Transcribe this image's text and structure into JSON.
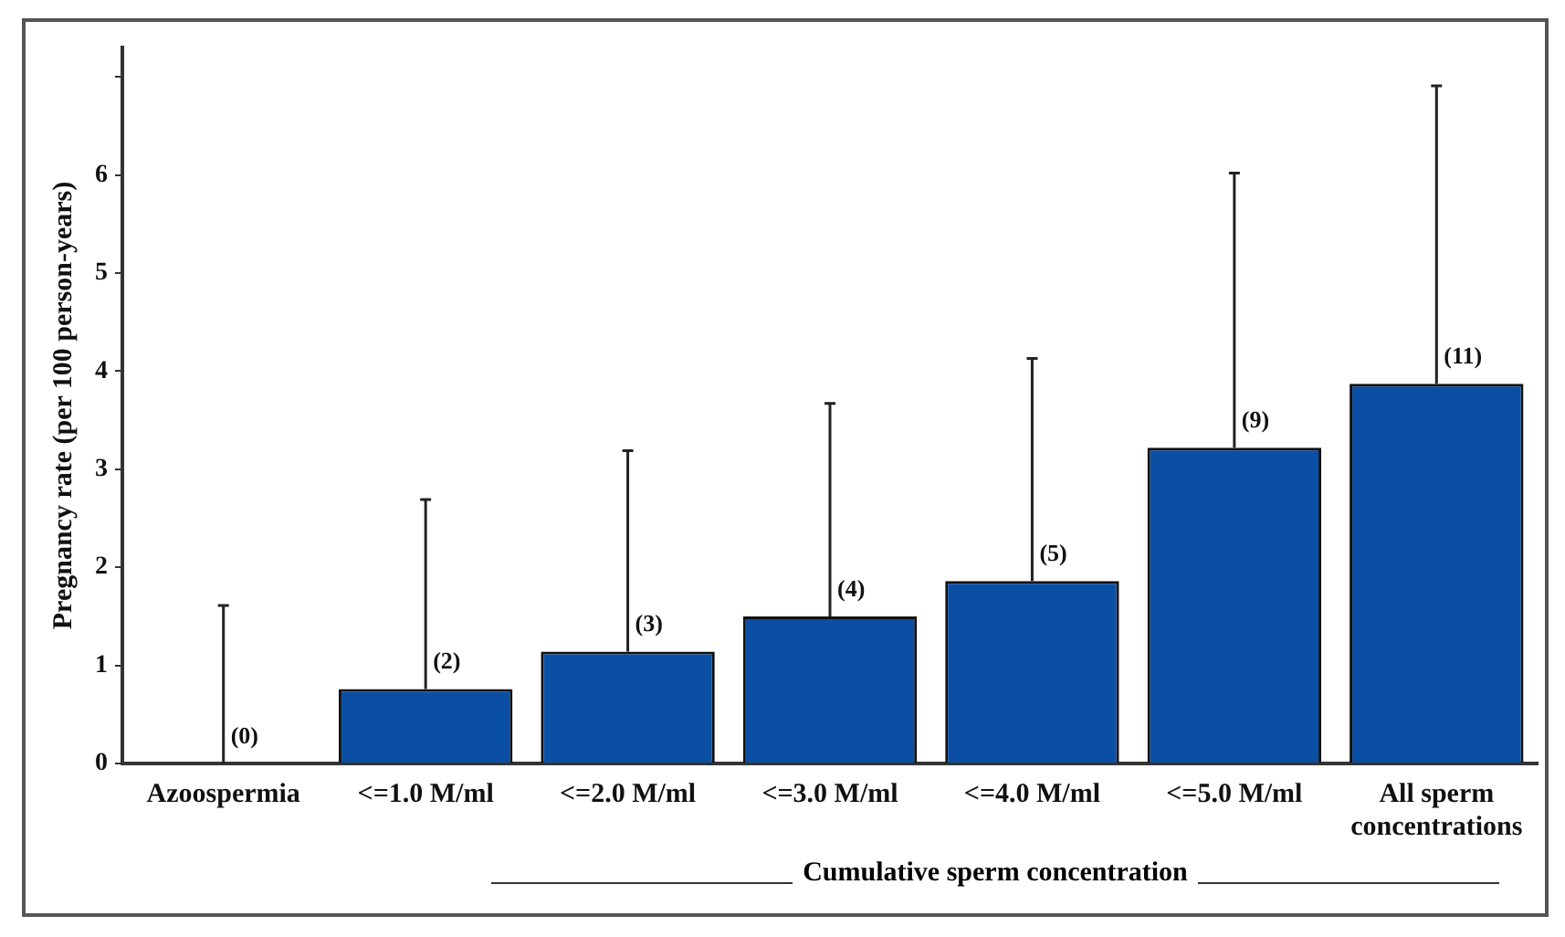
{
  "chart_data": {
    "type": "bar",
    "ylabel": "Pregnancy rate (per 100 person-years)",
    "xlabel": "Cumulative sperm concentration",
    "categories": [
      "Azoospermia",
      "<=1.0 M/ml",
      "<=2.0 M/ml",
      "<=3.0 M/ml",
      "<=4.0 M/ml",
      "<=5.0 M/ml",
      "All sperm concentrations"
    ],
    "values": [
      0,
      0.76,
      1.14,
      1.5,
      1.86,
      3.22,
      3.87
    ],
    "errors": [
      [
        0,
        1.61
      ],
      [
        0.76,
        2.69
      ],
      [
        1.14,
        3.19
      ],
      [
        1.5,
        3.67
      ],
      [
        1.86,
        4.13
      ],
      [
        3.22,
        6.02
      ],
      [
        3.87,
        6.91
      ]
    ],
    "color": "#0a4fa3",
    "ylim": [
      0,
      7.3
    ],
    "yticks": [
      0,
      1,
      2,
      3,
      4,
      5,
      6,
      {
        "value": 7,
        "label": null
      }
    ],
    "grid": false,
    "legend": false,
    "annotations": [
      {
        "text": "(0)",
        "x": "Azoospermia",
        "y": 0
      },
      {
        "text": "(2)",
        "x": "<=1.0 M/ml",
        "y": 0.76
      },
      {
        "text": "(3)",
        "x": "<=2.0 M/ml",
        "y": 1.14
      },
      {
        "text": "(4)",
        "x": "<=3.0 M/ml",
        "y": 1.5
      },
      {
        "text": "(5)",
        "x": "<=4.0 M/ml",
        "y": 1.86
      },
      {
        "text": "(9)",
        "x": "<=5.0 M/ml",
        "y": 3.22
      },
      {
        "text": "(11)",
        "x": "All sperm concentrations",
        "y": 3.87
      }
    ]
  }
}
